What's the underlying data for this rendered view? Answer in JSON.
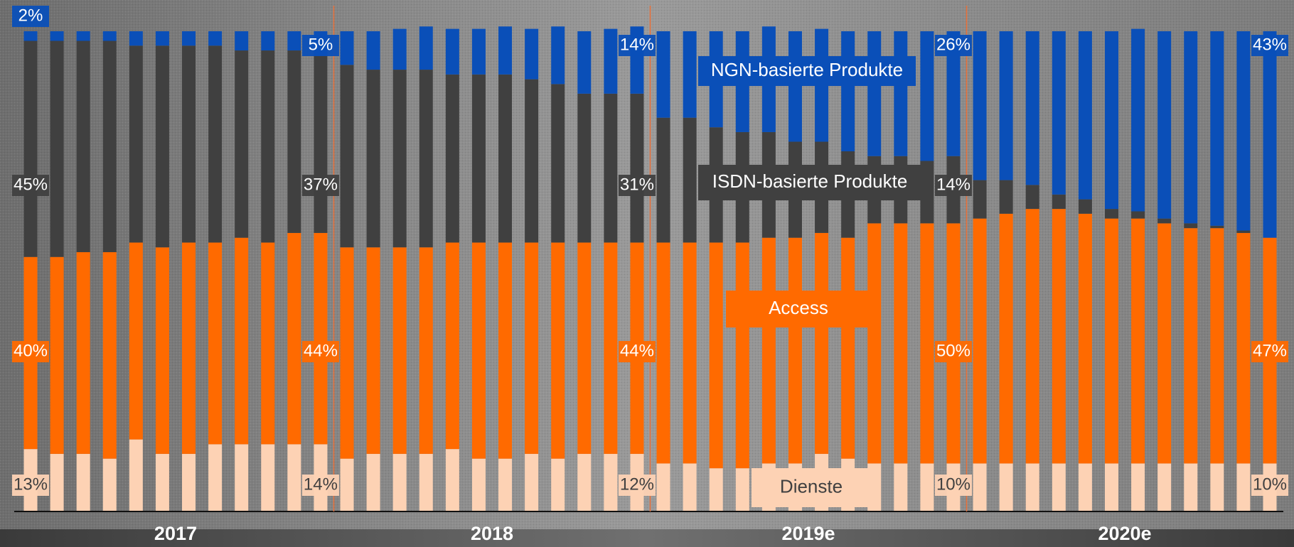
{
  "chart_data": {
    "type": "stacked_bar",
    "ylim": [
      0,
      100
    ],
    "groups": [
      "2017",
      "2018",
      "2019e",
      "2020e"
    ],
    "series": [
      {
        "name": "Dienste",
        "color": "#fdd2b4",
        "text_color": "#404040",
        "values": [
          13,
          12,
          12,
          11,
          15,
          12,
          12,
          14,
          14,
          14,
          14,
          14,
          11,
          12,
          12,
          12,
          13,
          11,
          11,
          12,
          11,
          12,
          12,
          12,
          10,
          10,
          9,
          9,
          10,
          10,
          12,
          11,
          10,
          10,
          10,
          10,
          10,
          10,
          10,
          10,
          10,
          10,
          10,
          10,
          10,
          10,
          10,
          10
        ],
        "value_labels": [
          "13%",
          null,
          null,
          null,
          null,
          null,
          null,
          null,
          null,
          null,
          null,
          "14%",
          null,
          null,
          null,
          null,
          null,
          null,
          null,
          null,
          null,
          null,
          null,
          "12%",
          null,
          null,
          null,
          null,
          null,
          null,
          null,
          null,
          null,
          null,
          null,
          "10%",
          null,
          null,
          null,
          null,
          null,
          null,
          null,
          null,
          null,
          null,
          null,
          "10%"
        ]
      },
      {
        "name": "Access",
        "color": "#ff6a00",
        "text_color": "#ffffff",
        "values": [
          40,
          41,
          42,
          43,
          41,
          43,
          44,
          42,
          43,
          42,
          44,
          44,
          44,
          43,
          43,
          43,
          43,
          45,
          45,
          44,
          45,
          44,
          44,
          44,
          46,
          46,
          47,
          47,
          47,
          47,
          46,
          46,
          50,
          50,
          50,
          50,
          51,
          52,
          53,
          53,
          52,
          51,
          51,
          50,
          49,
          49,
          48,
          47
        ],
        "value_labels": [
          "40%",
          null,
          null,
          null,
          null,
          null,
          null,
          null,
          null,
          null,
          null,
          "44%",
          null,
          null,
          null,
          null,
          null,
          null,
          null,
          null,
          null,
          null,
          null,
          "44%",
          null,
          null,
          null,
          null,
          null,
          null,
          null,
          null,
          null,
          null,
          null,
          "50%",
          null,
          null,
          null,
          null,
          null,
          null,
          null,
          null,
          null,
          null,
          null,
          "47%"
        ]
      },
      {
        "name": "ISDN-basierte Produkte",
        "color": "#404040",
        "text_color": "#ffffff",
        "values": [
          45,
          45,
          44,
          44,
          41,
          42,
          41,
          41,
          39,
          40,
          38,
          37,
          38,
          37,
          37,
          37,
          35,
          35,
          35,
          34,
          33,
          31,
          31,
          31,
          26,
          26,
          24,
          23,
          22,
          20,
          19,
          18,
          14,
          14,
          13,
          14,
          8,
          7,
          5,
          3,
          3,
          2,
          1.5,
          1,
          1,
          0.5,
          0.5,
          0
        ],
        "value_labels": [
          "45%",
          null,
          null,
          null,
          null,
          null,
          null,
          null,
          null,
          null,
          null,
          "37%",
          null,
          null,
          null,
          null,
          null,
          null,
          null,
          null,
          null,
          null,
          null,
          "31%",
          null,
          null,
          null,
          null,
          null,
          null,
          null,
          null,
          null,
          null,
          null,
          "14%",
          null,
          null,
          null,
          null,
          null,
          null,
          null,
          null,
          null,
          null,
          null,
          null
        ]
      },
      {
        "name": "NGN-basierte Produkte",
        "color": "#0a4fb8",
        "text_color": "#ffffff",
        "values": [
          2,
          2,
          2,
          2,
          3,
          3,
          3,
          3,
          4,
          4,
          4,
          5,
          7,
          8,
          8.5,
          9,
          9.5,
          9.5,
          10,
          10.5,
          12,
          13,
          13.5,
          14,
          18,
          18,
          20,
          21,
          22,
          23,
          23.5,
          25,
          26,
          26,
          27,
          26,
          31,
          31,
          32,
          34,
          35,
          37,
          38,
          39,
          40,
          40.5,
          41.5,
          43
        ],
        "value_labels": [
          "2%",
          null,
          null,
          null,
          null,
          null,
          null,
          null,
          null,
          null,
          null,
          "5%",
          null,
          null,
          null,
          null,
          null,
          null,
          null,
          null,
          null,
          null,
          null,
          "14%",
          null,
          null,
          null,
          null,
          null,
          null,
          null,
          null,
          null,
          null,
          null,
          "26%",
          null,
          null,
          null,
          null,
          null,
          null,
          null,
          null,
          null,
          null,
          null,
          "43%"
        ]
      }
    ]
  }
}
